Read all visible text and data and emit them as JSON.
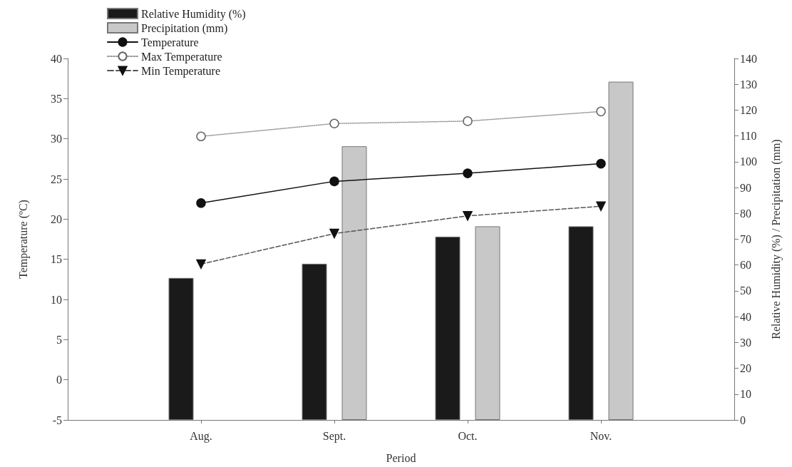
{
  "chart_data": {
    "type": "bar",
    "xlabel": "Period",
    "ylabel": "Temperature (ºC)",
    "y2label": "Relative Humidity (%) / Precipitation (mm)",
    "categories": [
      null,
      "Aug.",
      "Sept.",
      "Oct.",
      "Nov.",
      null
    ],
    "series": [
      {
        "name": "Relative Humidity (%)",
        "axis": "y2",
        "color": "#1a1a1a",
        "values": [
          null,
          55,
          60.5,
          71,
          75,
          null
        ]
      },
      {
        "name": "Precipitation (mm)",
        "axis": "y2",
        "color": "#c8c8c8",
        "values": [
          null,
          null,
          106,
          75,
          131,
          null
        ]
      },
      {
        "name": "Temperature",
        "type": "line",
        "color": "#111111",
        "marker": "circle",
        "line_style": "solid",
        "values": [
          null,
          22.0,
          24.7,
          25.7,
          26.9,
          null
        ]
      },
      {
        "name": "Max Temperature",
        "type": "line",
        "color": "#9a9a9a",
        "marker": "circle",
        "line_style": "dotted",
        "values": [
          null,
          30.3,
          31.9,
          32.2,
          33.4,
          null
        ]
      },
      {
        "name": "Min Temperature",
        "type": "line",
        "color": "#555555",
        "marker": "triangle",
        "line_style": "dashed",
        "values": [
          null,
          14.4,
          18.2,
          20.4,
          21.6,
          null
        ]
      }
    ],
    "ylim": [
      -5,
      40
    ],
    "yticks": [
      -5,
      0,
      5,
      10,
      15,
      20,
      25,
      30,
      35,
      40
    ],
    "y2lim": [
      0,
      140
    ],
    "y2ticks": [
      0,
      10,
      20,
      30,
      40,
      50,
      60,
      70,
      80,
      90,
      100,
      110,
      120,
      130,
      140
    ],
    "grid": false,
    "legend": "top left"
  }
}
